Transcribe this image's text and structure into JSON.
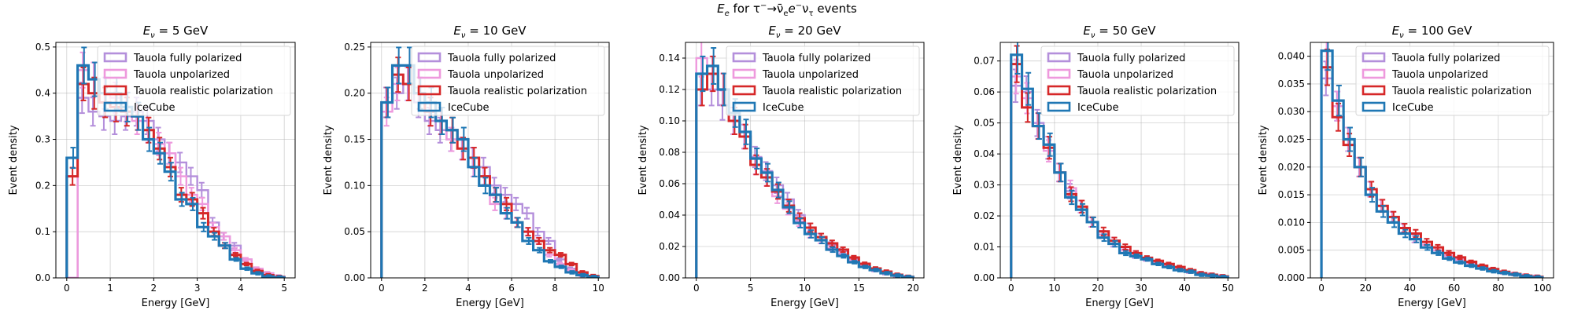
{
  "suptitle_parts": [
    "E",
    "e",
    " for τ",
    "−",
    "→",
    "ν̄",
    "e",
    "e",
    "−",
    "ν",
    "τ",
    " events"
  ],
  "colors": {
    "Tauola fully polarized": "#b48fdb",
    "Tauola unpolarized": "#ee99dd",
    "Tauola realistic polarization": "#d62728",
    "IceCube": "#1f77b4"
  },
  "legend_placement": "upper-right",
  "grid": true,
  "chart_data": [
    {
      "type": "step-histogram",
      "title": "Eν = 5 GeV",
      "title_parts": [
        "E",
        "ν",
        " = 5 GeV"
      ],
      "xlabel": "Energy [GeV]",
      "ylabel": "Event density",
      "xlim": [
        -0.25,
        5.25
      ],
      "ylim": [
        0,
        0.51
      ],
      "xticks": [
        0,
        1,
        2,
        3,
        4,
        5
      ],
      "xtick_labels": [
        "0",
        "1",
        "2",
        "3",
        "4",
        "5"
      ],
      "yticks": [
        0,
        0.1,
        0.2,
        0.3,
        0.4,
        0.5
      ],
      "ytick_labels": [
        "0.0",
        "0.1",
        "0.2",
        "0.3",
        "0.4",
        "0.5"
      ],
      "bin_edges": [
        0,
        0.25,
        0.5,
        0.75,
        1.0,
        1.25,
        1.5,
        1.75,
        2.0,
        2.25,
        2.5,
        2.75,
        3.0,
        3.25,
        3.5,
        3.75,
        4.0,
        4.25,
        4.5,
        4.75,
        5.0
      ],
      "series": [
        {
          "name": "Tauola fully polarized",
          "values": [
            0.0,
            0.39,
            0.36,
            0.35,
            0.34,
            0.35,
            0.36,
            0.34,
            0.3,
            0.27,
            0.25,
            0.22,
            0.19,
            0.12,
            0.09,
            0.07,
            0.04,
            0.02,
            0.01,
            0.003
          ]
        },
        {
          "name": "Tauola unpolarized",
          "values": [
            0.0,
            0.45,
            0.43,
            0.4,
            0.39,
            0.37,
            0.34,
            0.32,
            0.29,
            0.27,
            0.22,
            0.18,
            0.16,
            0.11,
            0.09,
            0.06,
            0.04,
            0.02,
            0.01,
            0.003
          ]
        },
        {
          "name": "Tauola realistic polarization",
          "values": [
            0.22,
            0.42,
            0.4,
            0.38,
            0.37,
            0.36,
            0.35,
            0.32,
            0.28,
            0.24,
            0.18,
            0.17,
            0.14,
            0.1,
            0.07,
            0.05,
            0.03,
            0.015,
            0.006,
            0.002
          ]
        },
        {
          "name": "IceCube",
          "values": [
            0.26,
            0.46,
            0.43,
            0.4,
            0.4,
            0.37,
            0.35,
            0.3,
            0.27,
            0.23,
            0.17,
            0.16,
            0.11,
            0.09,
            0.07,
            0.04,
            0.02,
            0.01,
            0.003,
            0.001
          ]
        }
      ]
    },
    {
      "type": "step-histogram",
      "title": "Eν = 10 GeV",
      "title_parts": [
        "E",
        "ν",
        " = 10 GeV"
      ],
      "xlabel": "Energy [GeV]",
      "ylabel": "Event density",
      "xlim": [
        -0.5,
        10.5
      ],
      "ylim": [
        0,
        0.255
      ],
      "xticks": [
        0,
        2,
        4,
        6,
        8,
        10
      ],
      "xtick_labels": [
        "0",
        "2",
        "4",
        "6",
        "8",
        "10"
      ],
      "yticks": [
        0,
        0.05,
        0.1,
        0.15,
        0.2,
        0.25
      ],
      "ytick_labels": [
        "0.00",
        "0.05",
        "0.10",
        "0.15",
        "0.20",
        "0.25"
      ],
      "bin_edges": [
        0,
        0.5,
        1.0,
        1.5,
        2.0,
        2.5,
        3.0,
        3.5,
        4.0,
        4.5,
        5.0,
        5.5,
        6.0,
        6.5,
        7.0,
        7.5,
        8.0,
        8.5,
        9.0,
        9.5,
        10.0
      ],
      "series": [
        {
          "name": "Tauola fully polarized",
          "values": [
            0.19,
            0.2,
            0.21,
            0.19,
            0.17,
            0.16,
            0.15,
            0.14,
            0.13,
            0.12,
            0.1,
            0.09,
            0.08,
            0.07,
            0.05,
            0.04,
            0.02,
            0.01,
            0.005,
            0.001
          ]
        },
        {
          "name": "Tauola unpolarized",
          "values": [
            0.18,
            0.21,
            0.21,
            0.2,
            0.18,
            0.17,
            0.15,
            0.14,
            0.12,
            0.11,
            0.08,
            0.07,
            0.06,
            0.05,
            0.04,
            0.025,
            0.015,
            0.008,
            0.003,
            0.001
          ]
        },
        {
          "name": "Tauola realistic polarization",
          "values": [
            0.19,
            0.22,
            0.21,
            0.2,
            0.18,
            0.17,
            0.16,
            0.14,
            0.13,
            0.11,
            0.09,
            0.08,
            0.06,
            0.05,
            0.04,
            0.03,
            0.025,
            0.015,
            0.006,
            0.002
          ]
        },
        {
          "name": "IceCube",
          "values": [
            0.19,
            0.23,
            0.23,
            0.2,
            0.19,
            0.17,
            0.16,
            0.15,
            0.12,
            0.1,
            0.09,
            0.07,
            0.06,
            0.04,
            0.03,
            0.018,
            0.012,
            0.006,
            0.003,
            0.001
          ]
        }
      ]
    },
    {
      "type": "step-histogram",
      "title": "Eν = 20 GeV",
      "title_parts": [
        "E",
        "ν",
        " = 20 GeV"
      ],
      "xlabel": "Energy [GeV]",
      "ylabel": "Event density",
      "xlim": [
        -1,
        21
      ],
      "ylim": [
        0,
        0.15
      ],
      "xticks": [
        0,
        5,
        10,
        15,
        20
      ],
      "xtick_labels": [
        "0",
        "5",
        "10",
        "15",
        "20"
      ],
      "yticks": [
        0,
        0.02,
        0.04,
        0.06,
        0.08,
        0.1,
        0.12,
        0.14
      ],
      "ytick_labels": [
        "0.00",
        "0.02",
        "0.04",
        "0.06",
        "0.08",
        "0.10",
        "0.12",
        "0.14"
      ],
      "bin_edges": [
        0,
        1,
        2,
        3,
        4,
        5,
        6,
        7,
        8,
        9,
        10,
        11,
        12,
        13,
        14,
        15,
        16,
        17,
        18,
        19,
        20
      ],
      "series": [
        {
          "name": "Tauola fully polarized",
          "values": [
            0.12,
            0.12,
            0.11,
            0.1,
            0.09,
            0.077,
            0.068,
            0.059,
            0.05,
            0.04,
            0.032,
            0.026,
            0.021,
            0.017,
            0.012,
            0.008,
            0.005,
            0.003,
            0.0015,
            0.0005
          ]
        },
        {
          "name": "Tauola unpolarized",
          "values": [
            0.14,
            0.13,
            0.12,
            0.1,
            0.09,
            0.072,
            0.064,
            0.052,
            0.044,
            0.036,
            0.028,
            0.024,
            0.019,
            0.015,
            0.011,
            0.008,
            0.005,
            0.003,
            0.0015,
            0.0005
          ]
        },
        {
          "name": "Tauola realistic polarization",
          "values": [
            0.12,
            0.13,
            0.12,
            0.1,
            0.09,
            0.072,
            0.064,
            0.055,
            0.046,
            0.038,
            0.032,
            0.026,
            0.022,
            0.018,
            0.013,
            0.009,
            0.006,
            0.004,
            0.002,
            0.0007
          ]
        },
        {
          "name": "IceCube",
          "values": [
            0.13,
            0.135,
            0.12,
            0.105,
            0.093,
            0.076,
            0.067,
            0.056,
            0.045,
            0.035,
            0.028,
            0.024,
            0.018,
            0.014,
            0.01,
            0.007,
            0.005,
            0.003,
            0.0015,
            0.0005
          ]
        }
      ]
    },
    {
      "type": "step-histogram",
      "title": "Eν = 50 GeV",
      "title_parts": [
        "E",
        "ν",
        " = 50 GeV"
      ],
      "xlabel": "Energy [GeV]",
      "ylabel": "Event density",
      "xlim": [
        -2.5,
        52.5
      ],
      "ylim": [
        0,
        0.076
      ],
      "xticks": [
        0,
        10,
        20,
        30,
        40,
        50
      ],
      "xtick_labels": [
        "0",
        "10",
        "20",
        "30",
        "40",
        "50"
      ],
      "yticks": [
        0,
        0.01,
        0.02,
        0.03,
        0.04,
        0.05,
        0.06,
        0.07
      ],
      "ytick_labels": [
        "0.00",
        "0.01",
        "0.02",
        "0.03",
        "0.04",
        "0.05",
        "0.06",
        "0.07"
      ],
      "bin_edges": [
        0,
        2.5,
        5,
        7.5,
        10,
        12.5,
        15,
        17.5,
        20,
        22.5,
        25,
        27.5,
        30,
        32.5,
        35,
        37.5,
        40,
        42.5,
        45,
        47.5,
        50
      ],
      "series": [
        {
          "name": "Tauola fully polarized",
          "values": [
            0.062,
            0.06,
            0.05,
            0.042,
            0.034,
            0.028,
            0.023,
            0.018,
            0.014,
            0.011,
            0.009,
            0.007,
            0.006,
            0.005,
            0.004,
            0.003,
            0.002,
            0.0015,
            0.001,
            0.0005
          ]
        },
        {
          "name": "Tauola unpolarized",
          "values": [
            0.065,
            0.058,
            0.049,
            0.041,
            0.034,
            0.029,
            0.023,
            0.018,
            0.014,
            0.012,
            0.009,
            0.008,
            0.006,
            0.005,
            0.004,
            0.003,
            0.002,
            0.0015,
            0.001,
            0.0005
          ]
        },
        {
          "name": "Tauola realistic polarization",
          "values": [
            0.069,
            0.055,
            0.049,
            0.042,
            0.034,
            0.027,
            0.023,
            0.018,
            0.015,
            0.012,
            0.01,
            0.008,
            0.0065,
            0.0055,
            0.0045,
            0.0035,
            0.0025,
            0.0015,
            0.001,
            0.0005
          ]
        },
        {
          "name": "IceCube",
          "values": [
            0.072,
            0.061,
            0.049,
            0.043,
            0.034,
            0.026,
            0.022,
            0.018,
            0.013,
            0.011,
            0.008,
            0.007,
            0.006,
            0.0045,
            0.0035,
            0.0025,
            0.002,
            0.001,
            0.0007,
            0.0003
          ]
        }
      ]
    },
    {
      "type": "step-histogram",
      "title": "Eν = 100 GeV",
      "title_parts": [
        "E",
        "ν",
        " = 100 GeV"
      ],
      "xlabel": "Energy [GeV]",
      "ylabel": "Event density",
      "xlim": [
        -5,
        105
      ],
      "ylim": [
        0,
        0.0425
      ],
      "xticks": [
        0,
        20,
        40,
        60,
        80,
        100
      ],
      "xtick_labels": [
        "0",
        "20",
        "40",
        "60",
        "80",
        "100"
      ],
      "yticks": [
        0,
        0.005,
        0.01,
        0.015,
        0.02,
        0.025,
        0.03,
        0.035,
        0.04
      ],
      "ytick_labels": [
        "0.000",
        "0.005",
        "0.010",
        "0.015",
        "0.020",
        "0.025",
        "0.030",
        "0.035",
        "0.040"
      ],
      "bin_edges": [
        0,
        5,
        10,
        15,
        20,
        25,
        30,
        35,
        40,
        45,
        50,
        55,
        60,
        65,
        70,
        75,
        80,
        85,
        90,
        95,
        100
      ],
      "series": [
        {
          "name": "Tauola fully polarized",
          "values": [
            0.036,
            0.031,
            0.025,
            0.02,
            0.016,
            0.013,
            0.011,
            0.009,
            0.007,
            0.006,
            0.005,
            0.004,
            0.0033,
            0.0027,
            0.002,
            0.0015,
            0.001,
            0.0007,
            0.0004,
            0.0002
          ]
        },
        {
          "name": "Tauola unpolarized",
          "values": [
            0.041,
            0.031,
            0.025,
            0.02,
            0.016,
            0.013,
            0.011,
            0.009,
            0.007,
            0.006,
            0.005,
            0.004,
            0.0033,
            0.0027,
            0.002,
            0.0015,
            0.001,
            0.0007,
            0.0004,
            0.0002
          ]
        },
        {
          "name": "Tauola realistic polarization",
          "values": [
            0.038,
            0.029,
            0.024,
            0.02,
            0.016,
            0.013,
            0.011,
            0.009,
            0.008,
            0.0065,
            0.0055,
            0.0045,
            0.0037,
            0.0029,
            0.0022,
            0.0016,
            0.0011,
            0.0007,
            0.0004,
            0.0002
          ]
        },
        {
          "name": "IceCube",
          "values": [
            0.041,
            0.032,
            0.025,
            0.02,
            0.015,
            0.012,
            0.01,
            0.008,
            0.007,
            0.0055,
            0.0045,
            0.0035,
            0.0028,
            0.0022,
            0.0017,
            0.0012,
            0.0009,
            0.0006,
            0.0003,
            0.0001
          ]
        }
      ]
    }
  ]
}
